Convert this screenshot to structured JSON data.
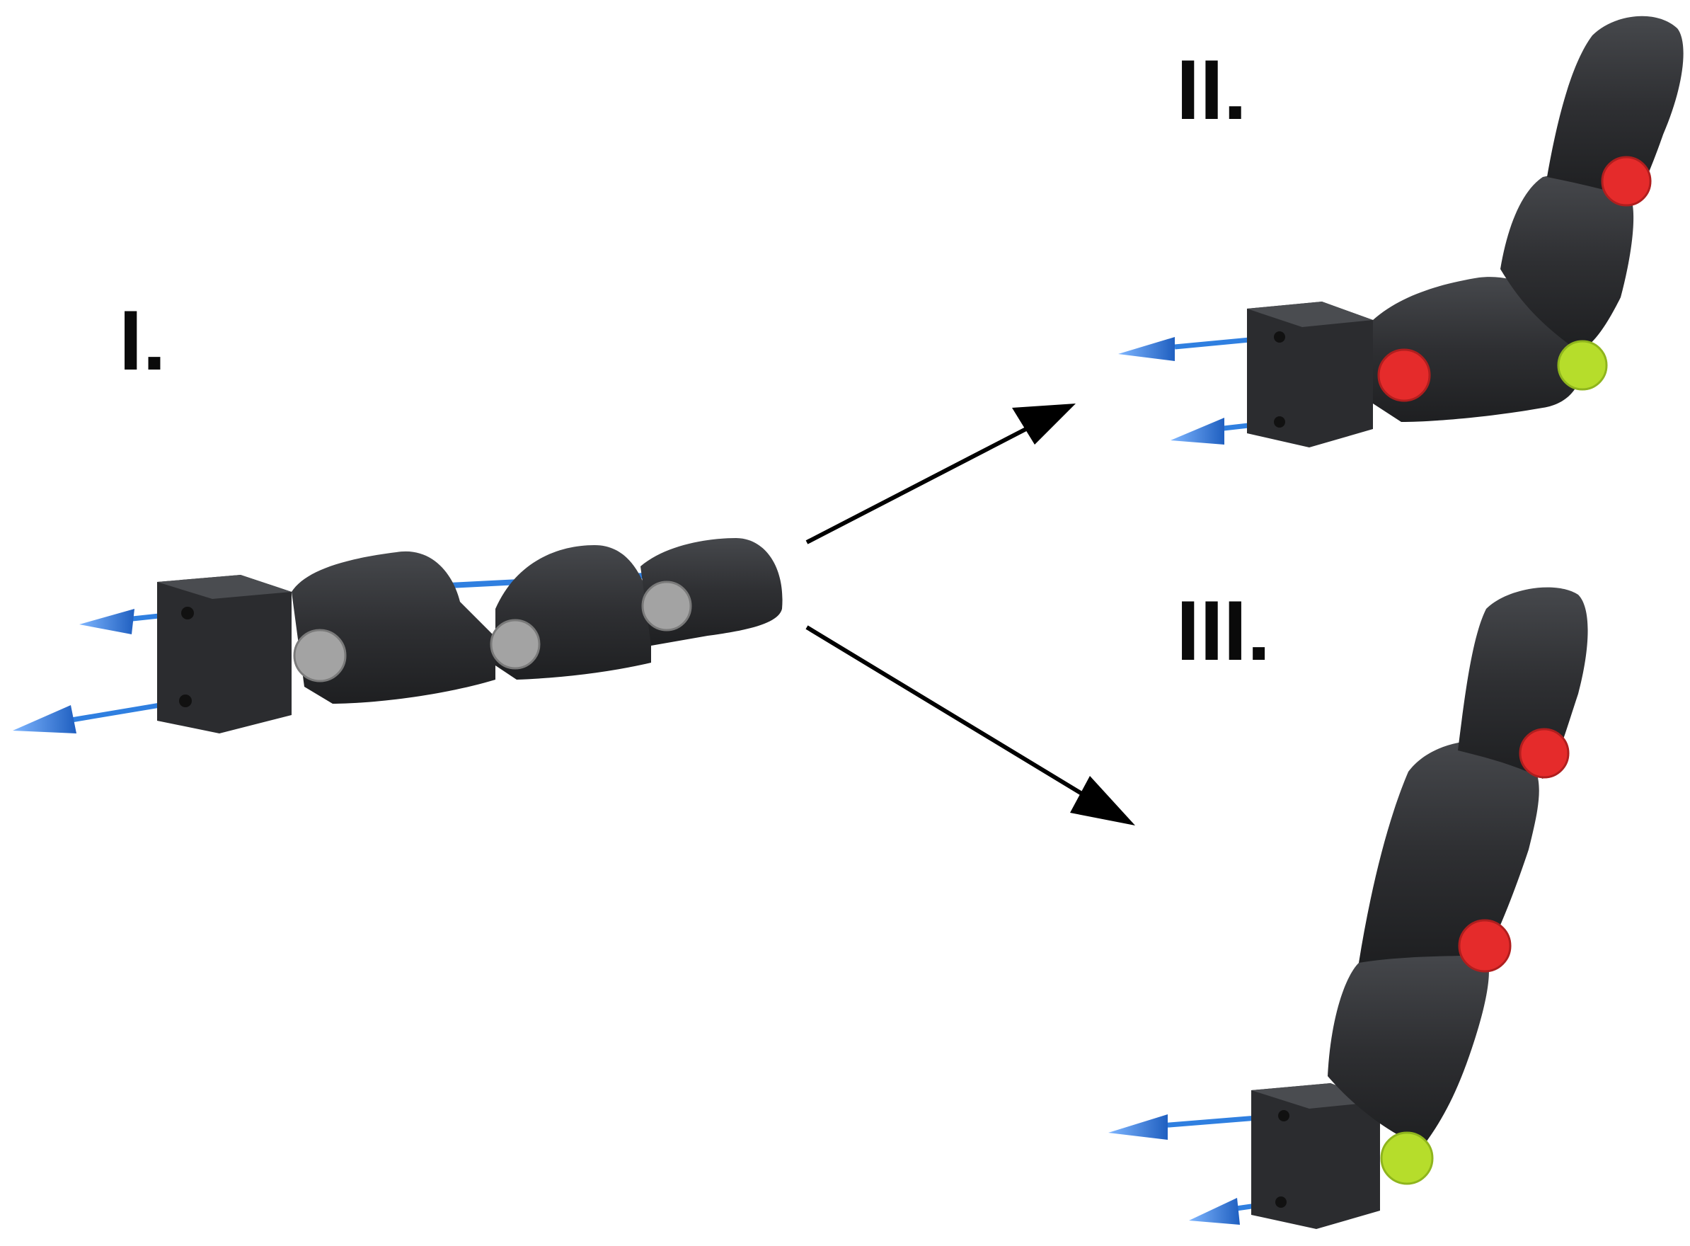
{
  "labels": {
    "state_1": "I.",
    "state_2": "II.",
    "state_3": "III."
  },
  "colors": {
    "finger_body": "#2f3033",
    "finger_shadow": "#1d1e20",
    "finger_highlight": "#4a4c50",
    "joint_neutral": "#a3a3a3",
    "joint_locked": "#e52b2b",
    "joint_free": "#b6dd2b",
    "tendon": "#2f7fe0",
    "arrow": "#000000"
  },
  "states": [
    {
      "id": "I",
      "joints": [
        "neutral",
        "neutral",
        "neutral"
      ]
    },
    {
      "id": "II",
      "joints": [
        "locked",
        "free",
        "locked"
      ]
    },
    {
      "id": "III",
      "joints": [
        "free",
        "locked",
        "locked"
      ]
    }
  ]
}
